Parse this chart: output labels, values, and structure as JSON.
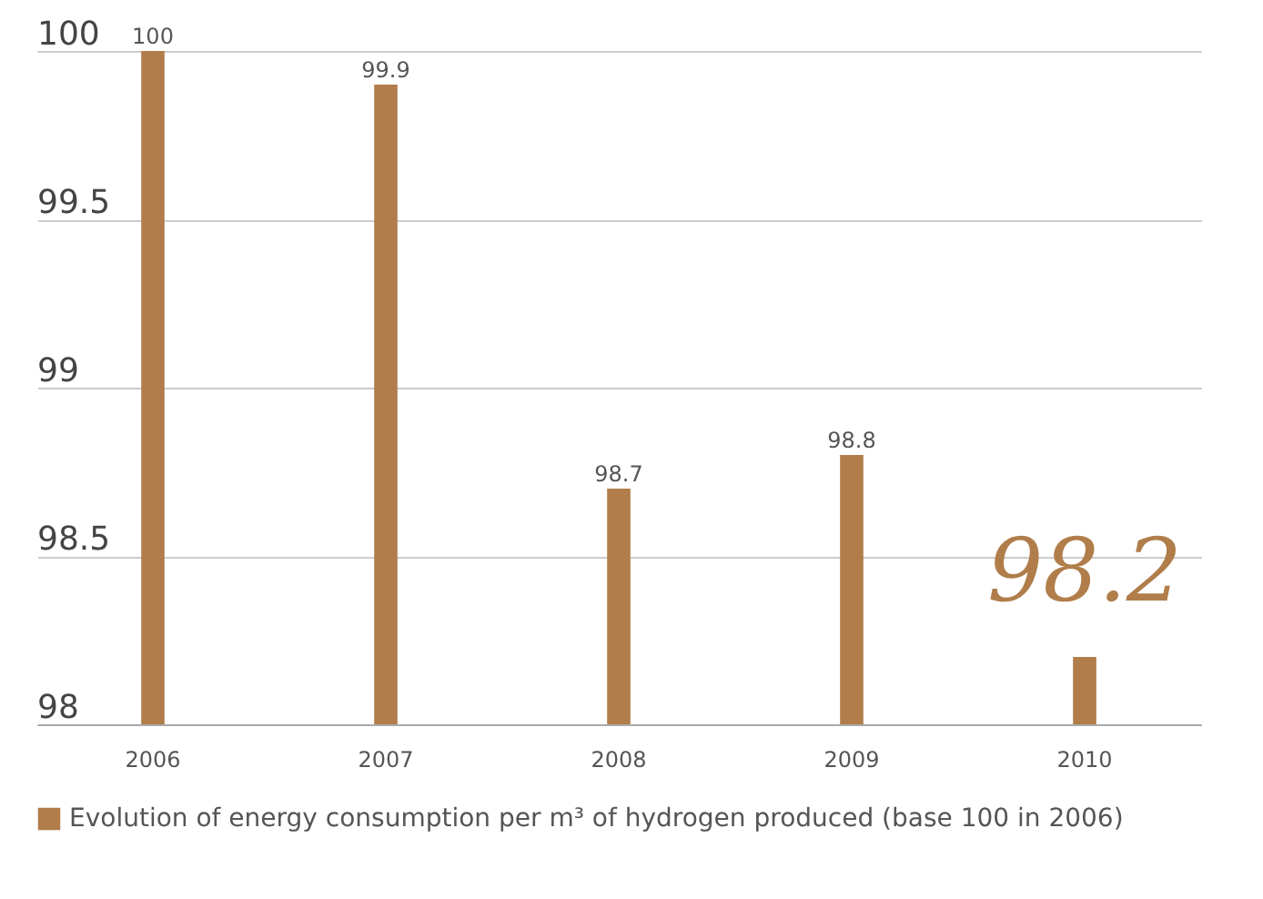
{
  "chart_data": {
    "type": "bar",
    "categories": [
      "2006",
      "2007",
      "2008",
      "2009",
      "2010"
    ],
    "series": [
      {
        "name": "Evolution of energy consumption per m³ of hydrogen produced (base 100 in 2006)",
        "color": "#b07d4b",
        "values": [
          100,
          99.9,
          98.7,
          98.8,
          98.2
        ]
      }
    ],
    "ylim": [
      98,
      100
    ],
    "yticks": [
      98,
      98.5,
      99,
      99.5,
      100
    ],
    "grid": "y",
    "data_labels": true,
    "legend": "bottom"
  }
}
